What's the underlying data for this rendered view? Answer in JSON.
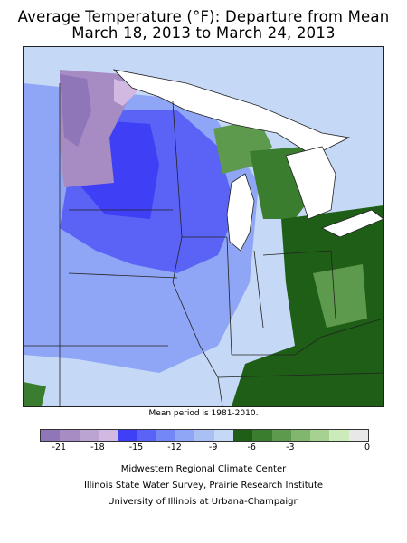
{
  "title": {
    "line1": "Average Temperature (°F): Departure from Mean",
    "line2": "March 18, 2013 to March 24, 2013"
  },
  "note": "Mean period is 1981-2010.",
  "legend": {
    "colors": [
      "#8e76b8",
      "#a78cc4",
      "#bba3d2",
      "#d2b9e2",
      "#3f3ff5",
      "#5a63f5",
      "#7488f5",
      "#8fa5f5",
      "#aac0f5",
      "#c5d9f7",
      "#1e5e16",
      "#3b7d2f",
      "#5e9a4d",
      "#82b56e",
      "#a6d190",
      "#ccebbb",
      "#e8e8e8"
    ],
    "ticks": [
      "-21",
      "-18",
      "-15",
      "-12",
      "-9",
      "-6",
      "-3",
      "0"
    ]
  },
  "credits": {
    "line1": "Midwestern Regional Climate Center",
    "line2": "Illinois State Water Survey, Prairie Research Institute",
    "line3": "University of Illinois at Urbana-Champaign"
  },
  "map_colors": {
    "light_blue": "#c5d9f7",
    "mid_blue": "#8fa5f5",
    "blue": "#5a63f5",
    "dark_blue": "#3f3ff5",
    "purple": "#a78cc4",
    "light_purple": "#d2b9e2",
    "dark_green": "#1e5e16",
    "green": "#5e9a4d",
    "light_green": "#a6d190",
    "water": "#ffffff",
    "border": "#222222"
  }
}
